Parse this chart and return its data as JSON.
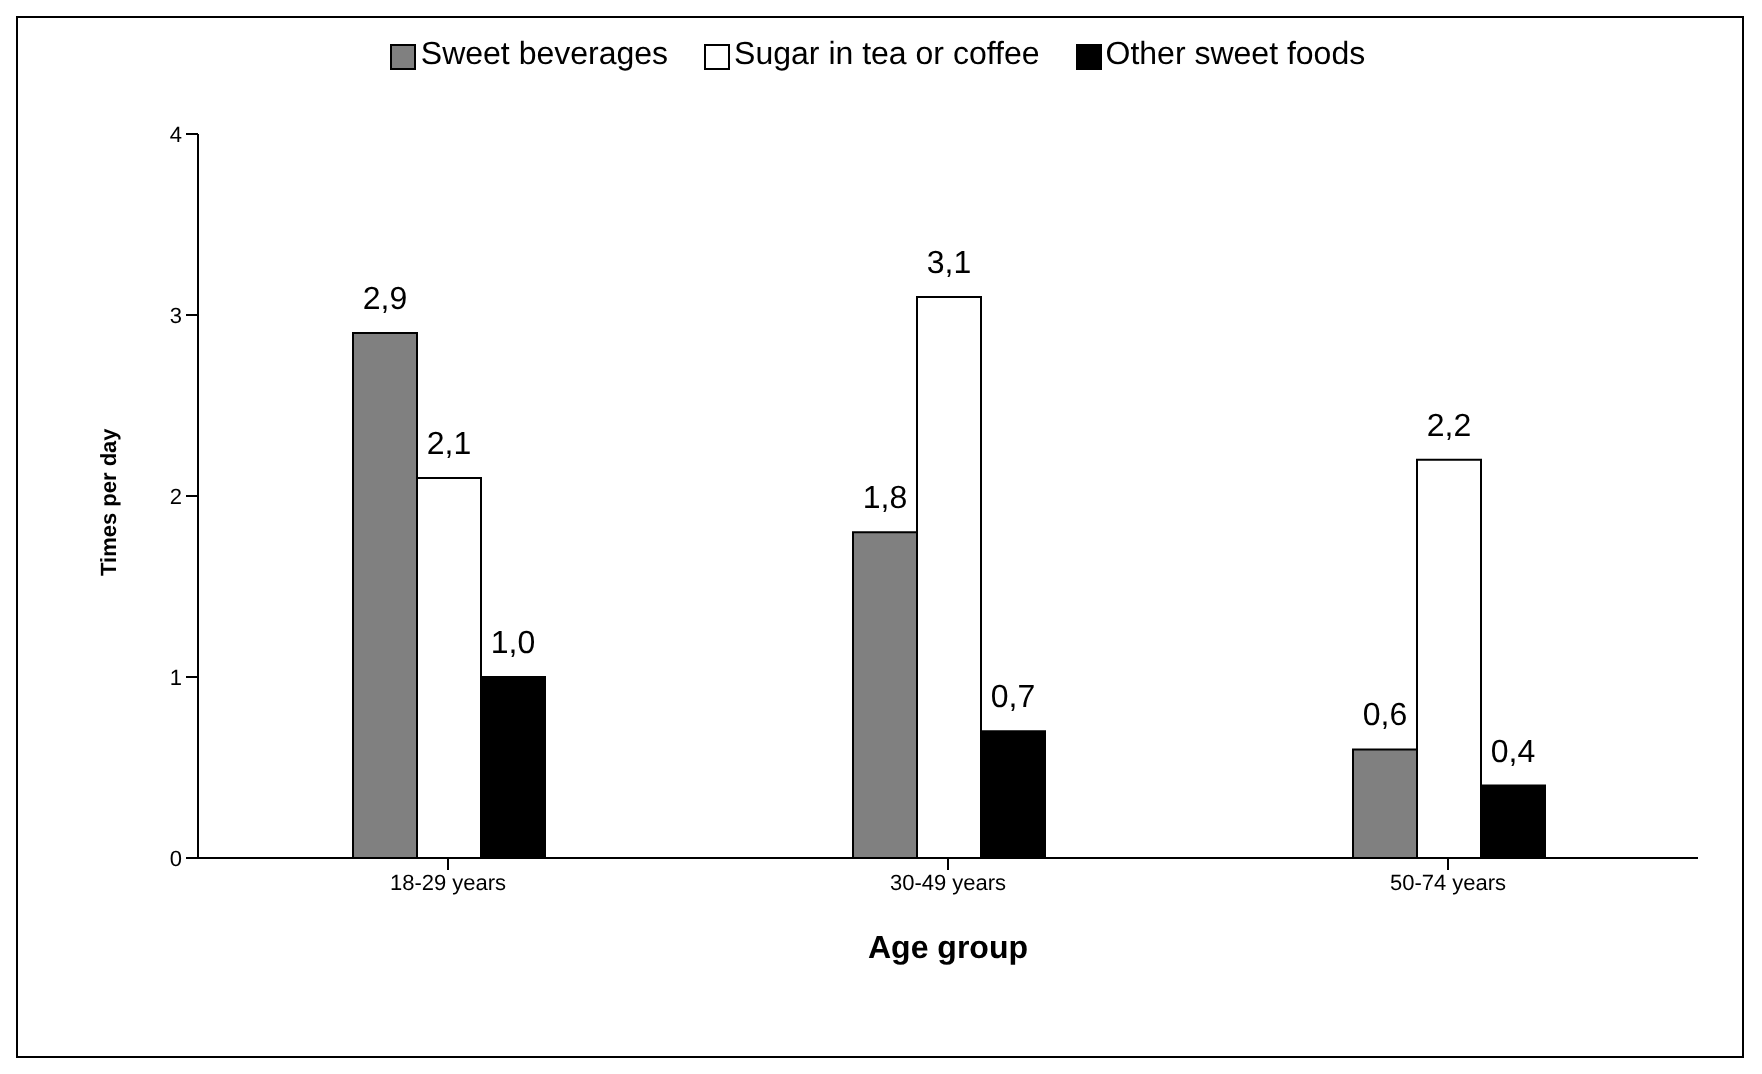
{
  "chart_data": {
    "type": "bar",
    "xlabel": "Age group",
    "ylabel": "Times per day",
    "categories": [
      "18-29 years",
      "30-49 years",
      "50-74 years"
    ],
    "series": [
      {
        "name": "Sweet beverages",
        "color": "#808080",
        "values": [
          2.9,
          1.8,
          0.6
        ],
        "value_labels": [
          "2,9",
          "1,8",
          "0,6"
        ]
      },
      {
        "name": "Sugar in tea or coffee",
        "color": "#ffffff",
        "values": [
          2.1,
          3.1,
          2.2
        ],
        "value_labels": [
          "2,1",
          "3,1",
          "2,2"
        ]
      },
      {
        "name": "Other sweet foods",
        "color": "#000000",
        "values": [
          1.0,
          0.7,
          0.4
        ],
        "value_labels": [
          "1,0",
          "0,7",
          "0,4"
        ]
      }
    ],
    "ylim": [
      0,
      4
    ],
    "yticks": [
      0,
      1,
      2,
      3,
      4
    ],
    "grid": false,
    "legend": "top"
  }
}
